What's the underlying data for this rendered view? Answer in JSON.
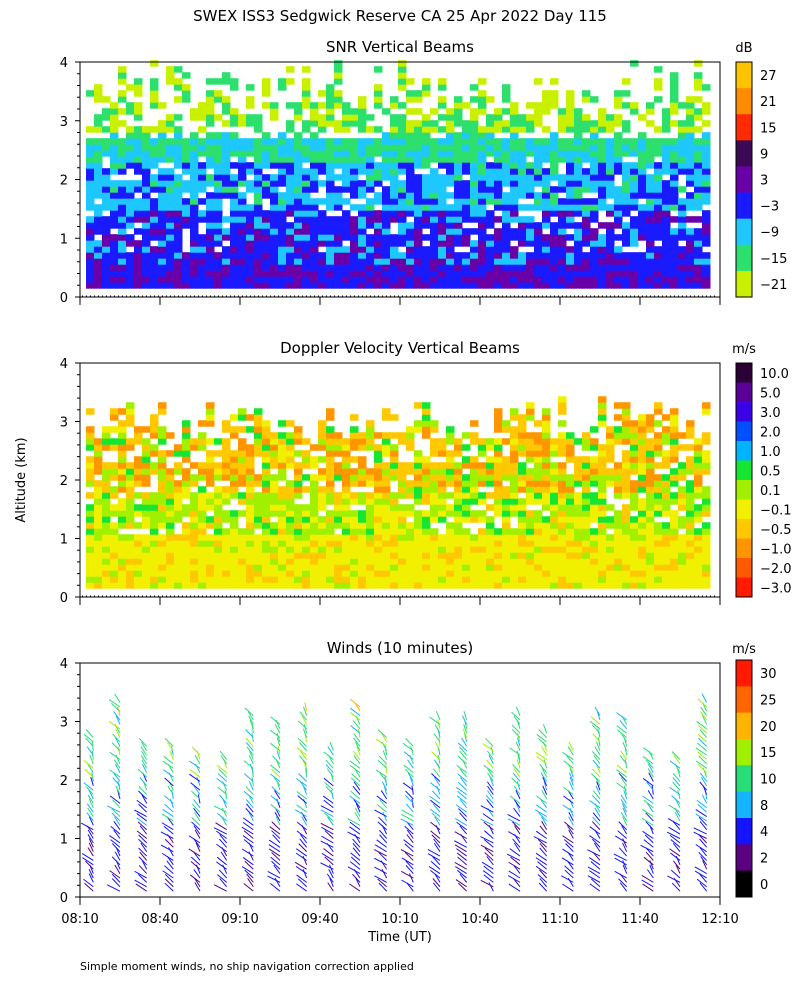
{
  "title": "SWEX ISS3 Sedgwick Reserve CA  25 Apr 2022 Day 115",
  "ylabel": "Altitude (km)",
  "footnote": "Simple moment winds, no ship navigation correction applied",
  "chart_data": [
    {
      "type": "heatmap",
      "title": "SNR Vertical Beams",
      "ylim": [
        0,
        4
      ],
      "yticks": [
        "0",
        "1",
        "2",
        "3",
        "4"
      ],
      "x_range_ut": [
        "08:10",
        "12:10"
      ],
      "colorbar": {
        "unit": "dB",
        "labels": [
          "27",
          "21",
          "15",
          "9",
          "3",
          "−3",
          "−9",
          "−15",
          "−21"
        ],
        "colors": [
          "#ffc400",
          "#ff8c00",
          "#ff2a00",
          "#3c0a55",
          "#6a00a8",
          "#1a1aff",
          "#1ec8ff",
          "#2de06e",
          "#c8f000"
        ]
      },
      "profile_by_altitude_km": [
        {
          "alt": 0.2,
          "level": "−15 to 3 dB"
        },
        {
          "alt": 1.0,
          "level": "−3 dB"
        },
        {
          "alt": 2.0,
          "level": "−9 dB"
        },
        {
          "alt": 2.7,
          "level": "−15 dB"
        },
        {
          "alt": 3.3,
          "level": "−21 dB"
        }
      ]
    },
    {
      "type": "heatmap",
      "title": "Doppler Velocity Vertical Beams",
      "ylim": [
        0,
        4
      ],
      "yticks": [
        "0",
        "1",
        "2",
        "3",
        "4"
      ],
      "x_range_ut": [
        "08:10",
        "12:10"
      ],
      "colorbar": {
        "unit": "m/s",
        "labels": [
          "10.0",
          "5.0",
          "3.0",
          "2.0",
          "1.0",
          "0.5",
          "0.1",
          "−0.1",
          "−0.5",
          "−1.0",
          "−2.0",
          "−3.0"
        ],
        "colors": [
          "#2a0036",
          "#5a0096",
          "#3a00e6",
          "#0050ff",
          "#00b4ff",
          "#14e632",
          "#a0f000",
          "#f0f000",
          "#ffc800",
          "#ff9600",
          "#ff5a00",
          "#ff1a00"
        ]
      }
    },
    {
      "type": "scatter",
      "title": "Winds (10 minutes)",
      "ylim": [
        0,
        4
      ],
      "yticks": [
        "0",
        "1",
        "2",
        "3",
        "4"
      ],
      "xlabel": "Time (UT)",
      "xticks": [
        "08:10",
        "08:40",
        "09:10",
        "09:40",
        "10:10",
        "10:40",
        "11:10",
        "11:40",
        "12:10"
      ],
      "colorbar": {
        "unit": "m/s",
        "labels": [
          "30",
          "25",
          "20",
          "15",
          "10",
          "8",
          "4",
          "2",
          "0"
        ],
        "colors": [
          "#ff1a00",
          "#ff6600",
          "#ffb400",
          "#a0f000",
          "#28dc78",
          "#14b4ff",
          "#1414ff",
          "#5a0080",
          "#000000"
        ]
      }
    }
  ]
}
